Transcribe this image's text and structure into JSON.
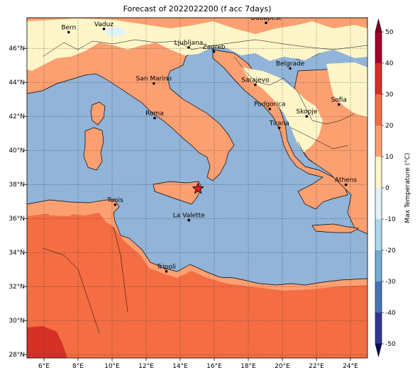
{
  "title": "Forecast of 2022022200 (f acc 7days)",
  "map": {
    "lon_range": [
      5,
      25
    ],
    "lat_range": [
      27.8,
      47.8
    ],
    "x_ticks": [
      {
        "value": 6,
        "label": "6°E"
      },
      {
        "value": 8,
        "label": "8°E"
      },
      {
        "value": 10,
        "label": "10°E"
      },
      {
        "value": 12,
        "label": "12°E"
      },
      {
        "value": 14,
        "label": "14°E"
      },
      {
        "value": 16,
        "label": "16°E"
      },
      {
        "value": 18,
        "label": "18°E"
      },
      {
        "value": 20,
        "label": "20°E"
      },
      {
        "value": 22,
        "label": "22°E"
      },
      {
        "value": 24,
        "label": "24°E"
      }
    ],
    "y_ticks": [
      {
        "value": 28,
        "label": "28°N"
      },
      {
        "value": 30,
        "label": "30°N"
      },
      {
        "value": 32,
        "label": "32°N"
      },
      {
        "value": 34,
        "label": "34°N"
      },
      {
        "value": 36,
        "label": "36°N"
      },
      {
        "value": 38,
        "label": "38°N"
      },
      {
        "value": 40,
        "label": "40°N"
      },
      {
        "value": 42,
        "label": "42°N"
      },
      {
        "value": 44,
        "label": "44°N"
      },
      {
        "value": 46,
        "label": "46°N"
      }
    ],
    "grid": true,
    "colors": {
      "sea": "#91b4d8",
      "land_warm": "#fca072",
      "land_hot": "#f46d43",
      "land_hotter": "#d73027",
      "land_mild": "#fef6c8",
      "land_cool": "#e0f3f8",
      "coast": "#000000",
      "marker": "#e41a1c"
    },
    "marker": {
      "lon": 15.05,
      "lat": 37.75,
      "shape": "star"
    },
    "cities": [
      {
        "name": "Bern",
        "lon": 7.45,
        "lat": 46.95
      },
      {
        "name": "Vaduz",
        "lon": 9.52,
        "lat": 47.14
      },
      {
        "name": "Budapest",
        "lon": 19.04,
        "lat": 47.5
      },
      {
        "name": "Ljubljana",
        "lon": 14.5,
        "lat": 46.05
      },
      {
        "name": "Zagreb",
        "lon": 15.98,
        "lat": 45.81
      },
      {
        "name": "Belgrade",
        "lon": 20.46,
        "lat": 44.82
      },
      {
        "name": "San Marino",
        "lon": 12.45,
        "lat": 43.94
      },
      {
        "name": "Sarajevo",
        "lon": 18.41,
        "lat": 43.86
      },
      {
        "name": "Sofia",
        "lon": 23.32,
        "lat": 42.7
      },
      {
        "name": "Podgorica",
        "lon": 19.26,
        "lat": 42.44
      },
      {
        "name": "Skopje",
        "lon": 21.43,
        "lat": 42.0
      },
      {
        "name": "Roma",
        "lon": 12.5,
        "lat": 41.9
      },
      {
        "name": "Tirana",
        "lon": 19.82,
        "lat": 41.33
      },
      {
        "name": "Athens",
        "lon": 23.73,
        "lat": 37.98
      },
      {
        "name": "Tunis",
        "lon": 10.18,
        "lat": 36.81
      },
      {
        "name": "La Valette",
        "lon": 14.51,
        "lat": 35.9
      },
      {
        "name": "Tripoli",
        "lon": 13.19,
        "lat": 32.89
      }
    ]
  },
  "colorbar": {
    "label": "Max Temperature (°C)",
    "min": -50,
    "max": 50,
    "ticks": [
      50,
      40,
      30,
      20,
      10,
      0,
      -10,
      -20,
      -30,
      -40,
      -50
    ],
    "bins": [
      {
        "from": 40,
        "to": 50,
        "color": "#a50026"
      },
      {
        "from": 30,
        "to": 40,
        "color": "#d73027"
      },
      {
        "from": 20,
        "to": 30,
        "color": "#f46d43"
      },
      {
        "from": 10,
        "to": 20,
        "color": "#fca072"
      },
      {
        "from": 0,
        "to": 10,
        "color": "#fef6c8"
      },
      {
        "from": -10,
        "to": 0,
        "color": "#e0f3f8"
      },
      {
        "from": -20,
        "to": -10,
        "color": "#abd9e9"
      },
      {
        "from": -30,
        "to": -20,
        "color": "#74add1"
      },
      {
        "from": -40,
        "to": -30,
        "color": "#4575b4"
      },
      {
        "from": -50,
        "to": -40,
        "color": "#313695"
      }
    ],
    "extend_colors": {
      "top": "#800020",
      "bottom": "#0f0f5e"
    }
  }
}
